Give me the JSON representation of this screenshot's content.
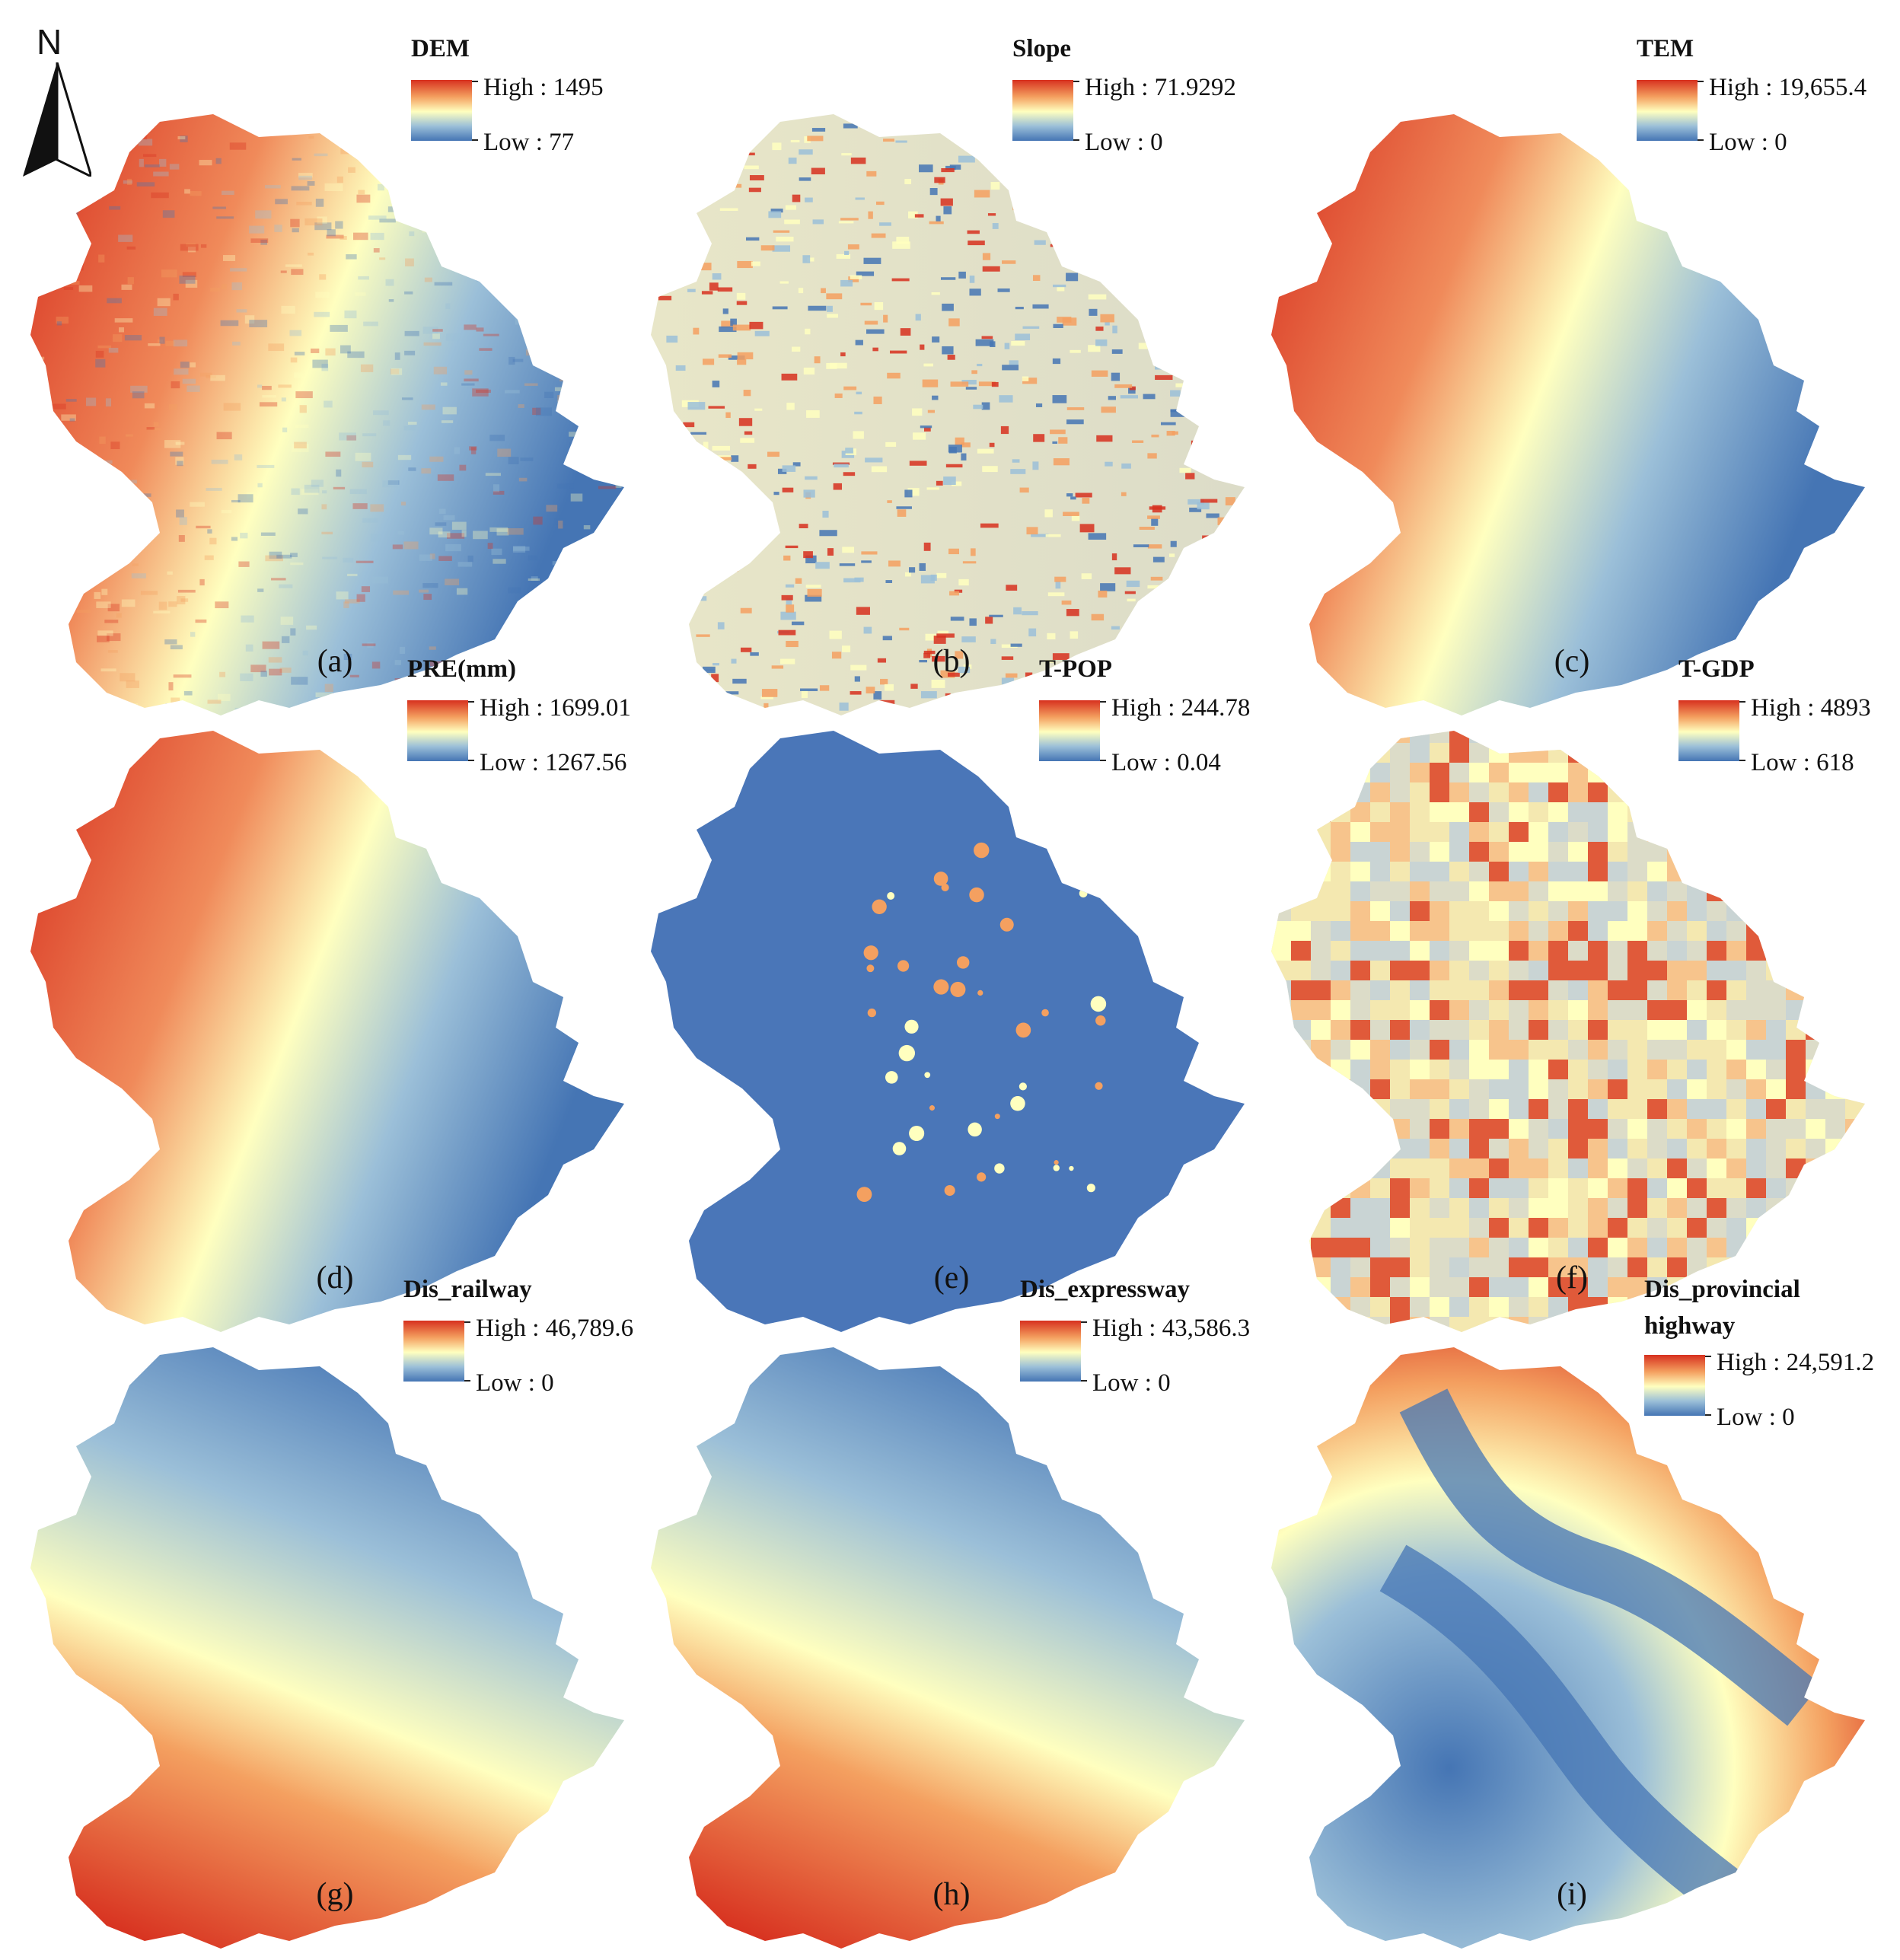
{
  "north_arrow": {
    "label": "N",
    "icon": "north-arrow-icon"
  },
  "ramp_colors": {
    "high": "#d7301f",
    "mid": "#ffffbf",
    "low": "#4575b4"
  },
  "panels": [
    {
      "id": "a",
      "caption": "(a)",
      "title": "DEM",
      "high": "High : 1495",
      "low": "Low : 77",
      "pattern": "dem"
    },
    {
      "id": "b",
      "caption": "(b)",
      "title": "Slope",
      "high": "High : 71.9292",
      "low": "Low : 0",
      "pattern": "slope"
    },
    {
      "id": "c",
      "caption": "(c)",
      "title": "TEM",
      "high": "High : 19,655.4",
      "low": "Low : 0",
      "pattern": "tem"
    },
    {
      "id": "d",
      "caption": "(d)",
      "title": "PRE(mm)",
      "high": "High : 1699.01",
      "low": "Low : 1267.56",
      "pattern": "pre"
    },
    {
      "id": "e",
      "caption": "(e)",
      "title": "T-POP",
      "high": "High : 244.78",
      "low": "Low : 0.04",
      "pattern": "pop"
    },
    {
      "id": "f",
      "caption": "(f)",
      "title": "T-GDP",
      "high": "High : 4893",
      "low": "Low : 618",
      "pattern": "gdp"
    },
    {
      "id": "g",
      "caption": "(g)",
      "title": "Dis_railway",
      "high": "High : 46,789.6",
      "low": "Low : 0",
      "pattern": "railway"
    },
    {
      "id": "h",
      "caption": "(h)",
      "title": "Dis_expressway",
      "high": "High : 43,586.3",
      "low": "Low : 0",
      "pattern": "expressway"
    },
    {
      "id": "i",
      "caption": "(i)",
      "title": "Dis_provincial highway",
      "title_line1": "Dis_provincial",
      "title_line2": "highway",
      "high": "High : 24,591.2",
      "low": "Low : 0",
      "pattern": "provincial"
    }
  ]
}
